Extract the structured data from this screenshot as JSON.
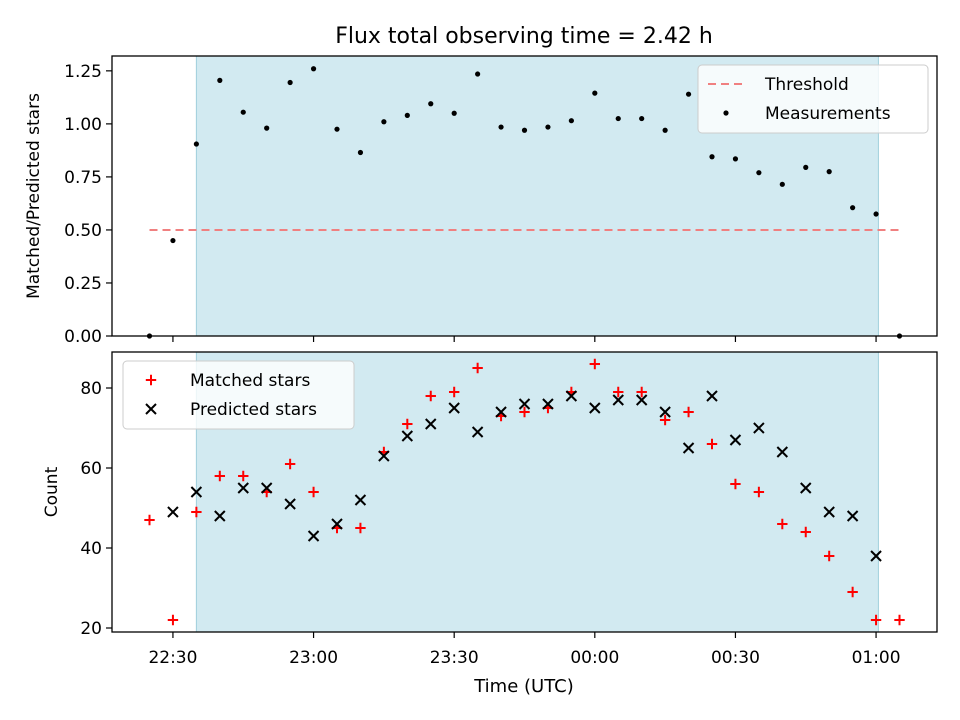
{
  "chart_data": {
    "title": "Flux total observing time = 2.42 h",
    "xlabel": "Time (UTC)",
    "x_ticks": [
      "22:30",
      "23:00",
      "23:30",
      "00:00",
      "00:30",
      "01:00"
    ],
    "x_tick_minutes": [
      0,
      30,
      60,
      90,
      120,
      150
    ],
    "x_range_minutes": [
      -13,
      163
    ],
    "time_start": "22:30",
    "shaded_region_minutes": [
      5,
      150.5
    ],
    "shaded_color": "#add8e6",
    "x_minutes": [
      -5,
      0,
      5,
      10,
      15,
      20,
      25,
      30,
      35,
      40,
      45,
      50,
      55,
      60,
      65,
      70,
      75,
      80,
      85,
      90,
      95,
      100,
      105,
      110,
      115,
      120,
      125,
      130,
      135,
      140,
      145,
      150,
      155
    ],
    "panels": [
      {
        "type": "scatter",
        "ylabel": "Matched/Predicted stars",
        "ylim": [
          0,
          1.32
        ],
        "y_ticks": [
          "0.00",
          "0.25",
          "0.50",
          "0.75",
          "1.00",
          "1.25"
        ],
        "y_tick_values": [
          0,
          0.25,
          0.5,
          0.75,
          1.0,
          1.25
        ],
        "legend_position": "top-right",
        "threshold": {
          "name": "Threshold",
          "value": 0.5,
          "x_range_minutes": [
            -5,
            155
          ],
          "color": "#f08080"
        },
        "series": [
          {
            "name": "Measurements",
            "marker": "dot",
            "color": "#000000",
            "values": [
              0.0,
              0.45,
              0.905,
              1.205,
              1.055,
              0.98,
              1.195,
              1.26,
              0.975,
              0.865,
              1.01,
              1.04,
              1.095,
              1.05,
              1.235,
              0.985,
              0.97,
              0.985,
              1.015,
              1.145,
              1.025,
              1.025,
              0.97,
              1.14,
              0.845,
              0.835,
              0.77,
              0.715,
              0.795,
              0.775,
              0.605,
              0.575,
              0.0
            ]
          }
        ]
      },
      {
        "type": "scatter",
        "ylabel": "Count",
        "ylim": [
          19,
          89
        ],
        "y_ticks": [
          "20",
          "40",
          "60",
          "80"
        ],
        "y_tick_values": [
          20,
          40,
          60,
          80
        ],
        "legend_position": "top-left",
        "series": [
          {
            "name": "Matched stars",
            "marker": "plus",
            "color": "#ff0000",
            "values": [
              47,
              22,
              49,
              58,
              58,
              54,
              61,
              54,
              45,
              45,
              64,
              71,
              78,
              79,
              85,
              73,
              74,
              75,
              79,
              86,
              79,
              79,
              72,
              74,
              66,
              56,
              54,
              46,
              44,
              38,
              29,
              22,
              22
            ]
          },
          {
            "name": "Predicted stars",
            "marker": "x",
            "color": "#000000",
            "values": [
              null,
              49,
              54,
              48,
              55,
              55,
              51,
              43,
              46,
              52,
              63,
              68,
              71,
              75,
              69,
              74,
              76,
              76,
              78,
              75,
              77,
              77,
              74,
              65,
              78,
              67,
              70,
              64,
              55,
              49,
              48,
              38,
              null
            ]
          }
        ]
      }
    ]
  }
}
